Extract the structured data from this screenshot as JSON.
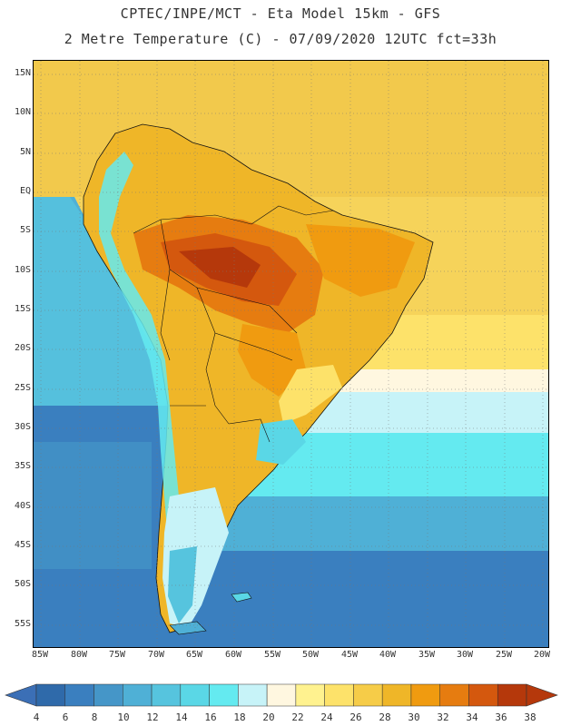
{
  "header": {
    "line1": "CPTEC/INPE/MCT -  Eta Model 15km - GFS",
    "line2": "2 Metre Temperature (C) - 07/09/2020 12UTC fct=33h"
  },
  "axes": {
    "lat_labels": [
      "15N",
      "10N",
      "5N",
      "EQ",
      "5S",
      "10S",
      "15S",
      "20S",
      "25S",
      "30S",
      "35S",
      "40S",
      "45S",
      "50S",
      "55S"
    ],
    "lon_labels": [
      "85W",
      "80W",
      "75W",
      "70W",
      "65W",
      "60W",
      "55W",
      "50W",
      "45W",
      "40W",
      "35W",
      "30W",
      "25W",
      "20W"
    ]
  },
  "colorbar": {
    "labels": [
      "4",
      "6",
      "8",
      "10",
      "12",
      "14",
      "16",
      "18",
      "20",
      "22",
      "24",
      "26",
      "28",
      "30",
      "32",
      "34",
      "36",
      "38"
    ],
    "low_color": "#3b6fb6",
    "high_color": "#b5380b",
    "colors": [
      "#2f6aaa",
      "#3a7fbf",
      "#4596c8",
      "#4fb0d6",
      "#56c4de",
      "#5ad7e6",
      "#64eaf0",
      "#c7f3f8",
      "#fff7e0",
      "#fff28f",
      "#fde26a",
      "#f6cc48",
      "#efb628",
      "#f09b10",
      "#e67c10",
      "#d4580e",
      "#b5380b"
    ]
  }
}
